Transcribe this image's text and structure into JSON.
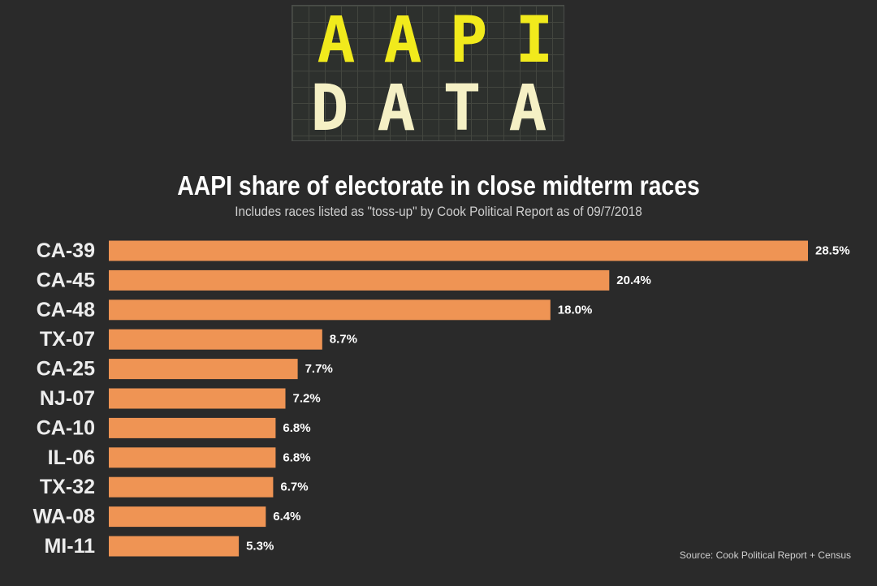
{
  "logo": {
    "line1": [
      "A",
      "A",
      "P",
      "I"
    ],
    "line2": [
      "D",
      "A",
      "T",
      "A"
    ],
    "line1_color": "#f1ea1c",
    "line2_color": "#f5f0c5"
  },
  "colors": {
    "background": "#2a2a2a",
    "bar": "#ef9454"
  },
  "chart_data": {
    "type": "bar",
    "orientation": "horizontal",
    "title": "AAPI share of electorate in close midterm races",
    "subtitle": "Includes races listed as \"toss-up\" by Cook Political Report as of 09/7/2018",
    "categories": [
      "CA-39",
      "CA-45",
      "CA-48",
      "TX-07",
      "CA-25",
      "NJ-07",
      "CA-10",
      "IL-06",
      "TX-32",
      "WA-08",
      "MI-11"
    ],
    "values": [
      28.5,
      20.4,
      18.0,
      8.7,
      7.7,
      7.2,
      6.8,
      6.8,
      6.7,
      6.4,
      5.3
    ],
    "value_labels": [
      "28.5%",
      "20.4%",
      "18.0%",
      "8.7%",
      "7.7%",
      "7.2%",
      "6.8%",
      "6.8%",
      "6.7%",
      "6.4%",
      "5.3%"
    ],
    "xlim": [
      0,
      28.5
    ],
    "grid": false,
    "legend": "none"
  },
  "source": "Source: Cook Political Report + Census"
}
